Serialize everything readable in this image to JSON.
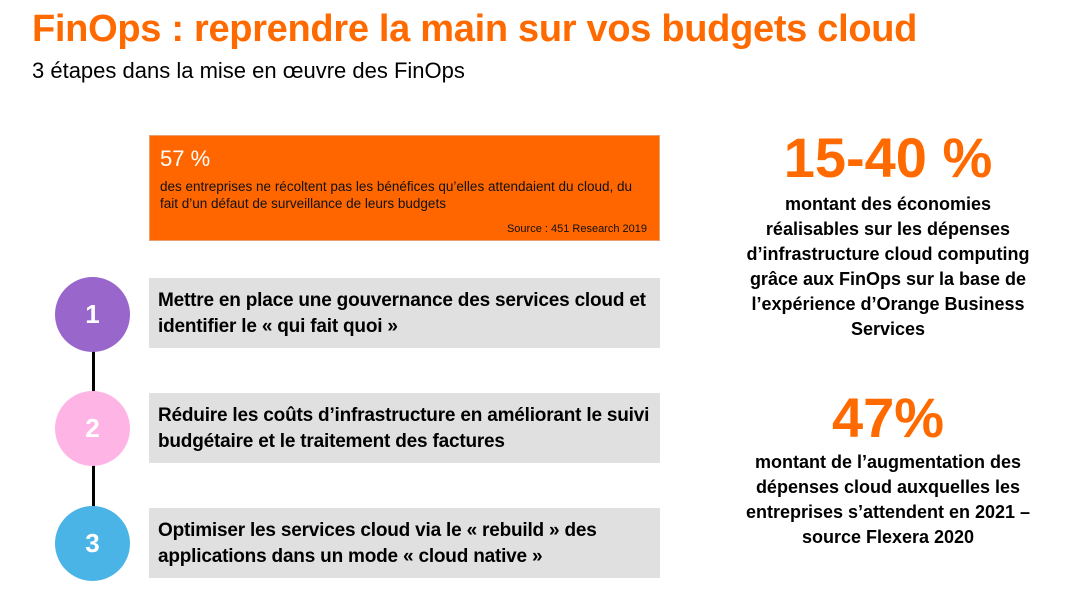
{
  "slide": {
    "title": "FinOps : reprendre la main sur vos budgets cloud",
    "subtitle": "3 étapes dans la mise en œuvre des FinOps"
  },
  "highlight": {
    "value": "57 %",
    "description": "des entreprises ne récoltent pas les bénéfices qu’elles attendaient du cloud, du fait d’un défaut de surveillance de leurs budgets",
    "source": "Source : 451 Research 2019"
  },
  "steps": [
    {
      "number": "1",
      "text": "Mettre en place une gouvernance des services cloud et identifier le « qui fait quoi »",
      "color": "#9966cc"
    },
    {
      "number": "2",
      "text": "Réduire les coûts d’infrastructure en améliorant le suivi budgétaire et le traitement des factures",
      "color": "#ffb4e6"
    },
    {
      "number": "3",
      "text": "Optimiser les services cloud via le « rebuild » des applications dans un mode « cloud native »",
      "color": "#4bb4e6"
    }
  ],
  "stats": [
    {
      "value": "15-40 %",
      "text": "montant des économies réalisables sur les dépenses d’infrastructure cloud computing grâce aux FinOps sur la base de l’expérience d’Orange Business Services"
    },
    {
      "value": "47%",
      "text": "montant de l’augmentation des dépenses cloud auxquelles les entreprises s’attendent en 2021 – source Flexera 2020"
    }
  ],
  "colors": {
    "accent": "#ff6600",
    "step_box": "#e0e0e0"
  }
}
